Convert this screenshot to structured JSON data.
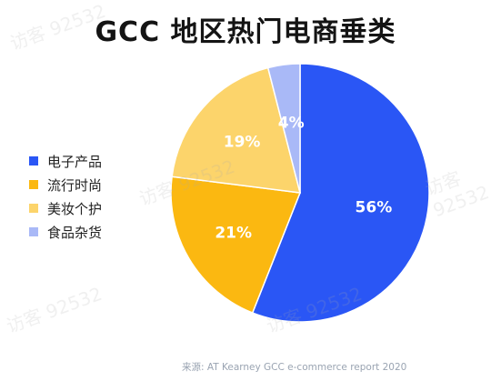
{
  "title": "GCC 地区热门电商垂类",
  "source": "来源: AT Kearney GCC e-commerce report 2020",
  "watermark": "访客 92532",
  "chart_data": {
    "type": "pie",
    "title": "GCC 地区热门电商垂类",
    "categories": [
      "电子产品",
      "流行时尚",
      "美妆个护",
      "食品杂货"
    ],
    "values": [
      56,
      21,
      19,
      4
    ],
    "labels": [
      "56%",
      "21%",
      "19%",
      "4%"
    ],
    "colors": [
      "#2a56f5",
      "#fbb811",
      "#fcd46b",
      "#a9b9f7"
    ],
    "legend_position": "left"
  }
}
